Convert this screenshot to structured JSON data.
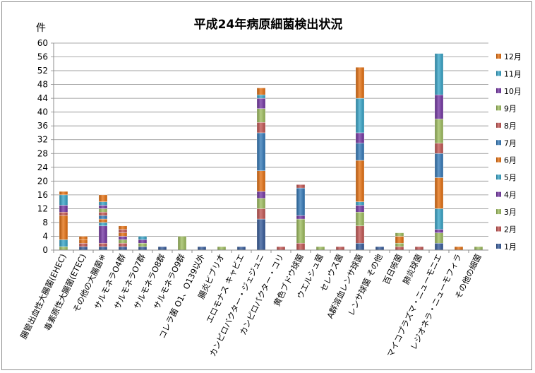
{
  "chart_data": {
    "type": "bar",
    "stacked": true,
    "title": "平成24年病原細菌検出状況",
    "ylabel": "件",
    "xlabel": "",
    "ylim": [
      0,
      60
    ],
    "yticks": [
      0,
      4,
      8,
      12,
      16,
      20,
      24,
      28,
      32,
      36,
      40,
      44,
      48,
      52,
      56,
      60
    ],
    "grid": true,
    "legend_position": "right",
    "categories": [
      "腸管出血性大腸菌(EHEC)",
      "毒素原性大腸菌(ETEC)",
      "その他の大腸菌※",
      "サルモネラO4群",
      "サルモネラO7群",
      "サルモネラO8群",
      "サルモネラO9群",
      "コレラ菌 O1、O139以外",
      "腸炎ビブリオ",
      "エロモナス キャビエ",
      "カンピロバクター・ジェジュニ",
      "カンピロバクター・コリ",
      "黄色ブドウ球菌",
      "ウエルシュ菌",
      "セレウス菌",
      "A群溶血レンサ球菌",
      "レンサ球菌 その他",
      "百日咳菌",
      "肺炎球菌",
      "マイコプラズマ・ニューモニエ",
      "レジオネラ・ニューモフィラ",
      "その他の細菌"
    ],
    "series": [
      {
        "name": "1月",
        "color": "#2F5597",
        "values": [
          0,
          1,
          1,
          1,
          1,
          1,
          0,
          1,
          0,
          1,
          9,
          0,
          0,
          0,
          0,
          2,
          1,
          0,
          0,
          2,
          0,
          0
        ]
      },
      {
        "name": "2月",
        "color": "#C0504D",
        "values": [
          0,
          1,
          1,
          1,
          0,
          0,
          0,
          0,
          0,
          0,
          3,
          1,
          2,
          0,
          1,
          5,
          0,
          1,
          1,
          0,
          0,
          0
        ]
      },
      {
        "name": "3月",
        "color": "#9BBB59",
        "values": [
          1,
          0,
          0,
          1,
          1,
          0,
          4,
          0,
          1,
          0,
          3,
          0,
          7,
          1,
          0,
          4,
          0,
          1,
          0,
          3,
          0,
          1
        ]
      },
      {
        "name": "4月",
        "color": "#7030A0",
        "values": [
          0,
          0,
          5,
          1,
          1,
          0,
          0,
          0,
          0,
          0,
          2,
          0,
          1,
          0,
          0,
          2,
          0,
          0,
          0,
          1,
          0,
          0
        ]
      },
      {
        "name": "5月",
        "color": "#31A1C6",
        "values": [
          2,
          0,
          1,
          0,
          1,
          0,
          0,
          0,
          0,
          0,
          0,
          0,
          0,
          0,
          0,
          1,
          0,
          0,
          0,
          6,
          0,
          0
        ]
      },
      {
        "name": "6月",
        "color": "#E46C0A",
        "values": [
          7,
          1,
          1,
          1,
          0,
          0,
          0,
          0,
          0,
          0,
          6,
          0,
          0,
          0,
          0,
          12,
          0,
          2,
          0,
          9,
          1,
          0
        ]
      },
      {
        "name": "7月",
        "color": "#2E75B6",
        "values": [
          0,
          0,
          1,
          0,
          0,
          0,
          0,
          0,
          0,
          0,
          11,
          0,
          8,
          0,
          0,
          5,
          0,
          0,
          0,
          7,
          0,
          0
        ]
      },
      {
        "name": "8月",
        "color": "#C0504D",
        "values": [
          1,
          0,
          1,
          1,
          0,
          0,
          0,
          0,
          0,
          0,
          3,
          0,
          1,
          0,
          0,
          0,
          0,
          0,
          0,
          3,
          0,
          0
        ]
      },
      {
        "name": "9月",
        "color": "#9BBB59",
        "values": [
          0,
          0,
          1,
          0,
          0,
          0,
          0,
          0,
          0,
          0,
          4,
          0,
          0,
          0,
          0,
          0,
          0,
          1,
          0,
          7,
          0,
          0
        ]
      },
      {
        "name": "10月",
        "color": "#7030A0",
        "values": [
          2,
          0,
          1,
          0,
          0,
          0,
          0,
          0,
          0,
          0,
          3,
          0,
          0,
          0,
          0,
          3,
          0,
          0,
          0,
          7,
          0,
          0
        ]
      },
      {
        "name": "11月",
        "color": "#31A1C6",
        "values": [
          3,
          0,
          1,
          0,
          0,
          0,
          0,
          0,
          0,
          0,
          1,
          0,
          0,
          0,
          0,
          10,
          0,
          0,
          0,
          12,
          0,
          0
        ]
      },
      {
        "name": "12月",
        "color": "#E46C0A",
        "values": [
          1,
          1,
          2,
          1,
          0,
          0,
          0,
          0,
          0,
          0,
          2,
          0,
          0,
          0,
          0,
          9,
          0,
          0,
          0,
          0,
          0,
          0
        ]
      }
    ]
  }
}
